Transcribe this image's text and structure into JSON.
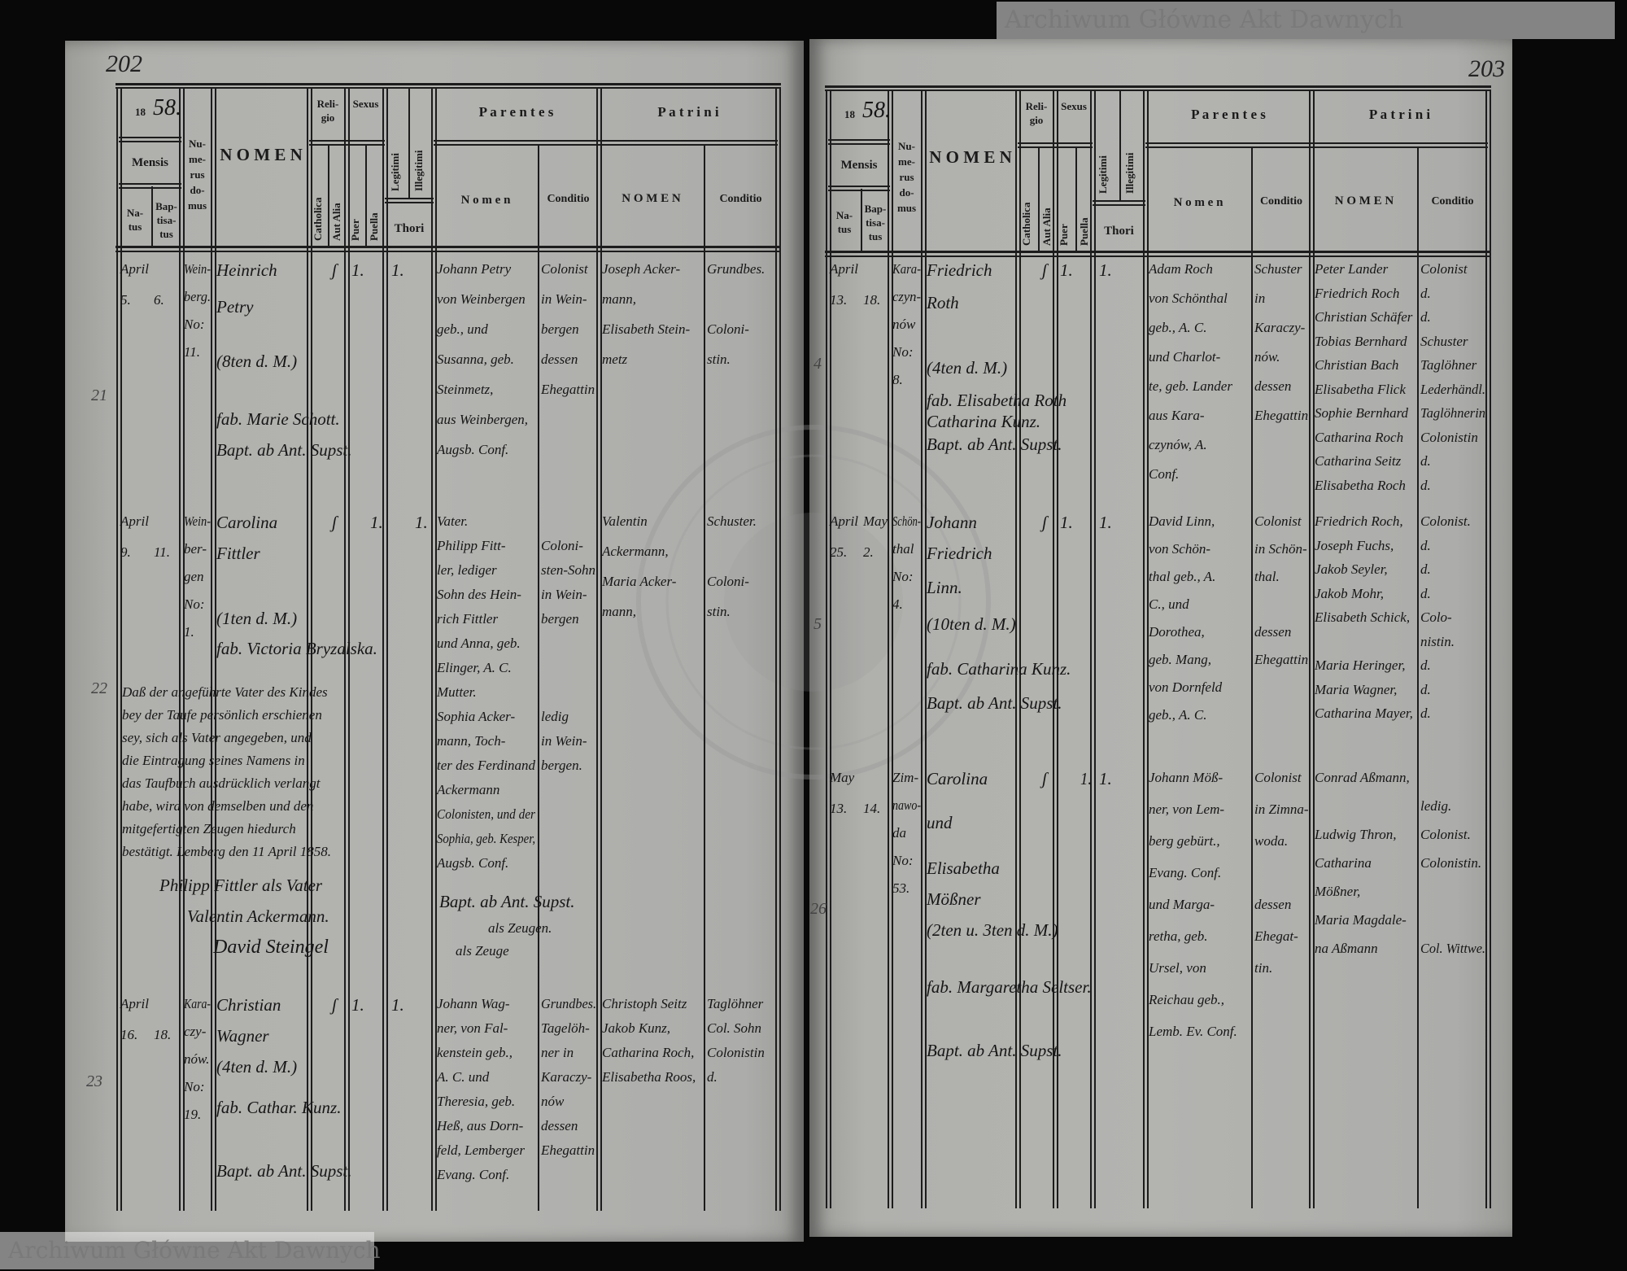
{
  "watermark_text": "Archiwum Główne Akt Dawnych",
  "stamp_text": "ARCHIWUM GŁÓWNE AKT DAWNYCH",
  "header": {
    "year_prefix": "18",
    "mensis": "Mensis",
    "natus": "Na-\ntus",
    "baptisatus": "Bap-\ntisa-\ntus",
    "numerus_domus": "Nu-\nme-\nrus\ndo-\nmus",
    "nomen": "N O M E N",
    "religio": "Reli-\ngio",
    "catholica": "Catholica",
    "aut_alia": "Aut Alia",
    "sexus": "Sexus",
    "puer": "Puer",
    "puella": "Puella",
    "legitimi": "Legitimi",
    "illegitimi": "Illegitimi",
    "thori": "Thori",
    "parentes": "P a r e n t e s",
    "parentes_nomen": "N o m e n",
    "conditio": "Conditio",
    "patrini": "P a t r i n i",
    "patrini_nomen": "N O M E N"
  },
  "left": {
    "page_number": "202",
    "year_suffix": "58.",
    "margin_numbers": [
      "21",
      "22",
      "23"
    ],
    "entries": [
      {
        "natus": [
          "April",
          "5."
        ],
        "baptisatus": [
          "",
          "6."
        ],
        "domus": [
          "Wein-",
          "berg.",
          "No:",
          "11."
        ],
        "nomen": [
          "Heinrich",
          "Petry",
          "",
          "(8ten d. M.)",
          "",
          "fab. Marie Schott.",
          "Bapt. ab Ant. Supst."
        ],
        "religio_aut_alia": "ʃ",
        "sexus_puer": "1.",
        "legitimi": "1.",
        "parentes_nomen": [
          "Johann Petry",
          "von Weinbergen",
          "geb., und",
          "Susanna, geb.",
          "Steinmetz,",
          "aus Weinbergen,",
          "Augsb. Conf."
        ],
        "parentes_conditio": [
          "Colonist",
          "in Wein-",
          "bergen",
          "dessen",
          "Ehegattin"
        ],
        "patrini_nomen": [
          "Joseph Acker-",
          "mann,",
          "Elisabeth Stein-",
          "metz"
        ],
        "patrini_conditio": [
          "Grundbes.",
          "",
          "Coloni-",
          "stin."
        ]
      },
      {
        "natus": [
          "April",
          "9."
        ],
        "baptisatus": [
          "",
          "11."
        ],
        "domus": [
          "Wein-",
          "ber-",
          "gen",
          "No:",
          "1."
        ],
        "nomen": [
          "Carolina",
          "Fittler",
          "",
          "(1ten d. M.)",
          "fab. Victoria Bryzalska."
        ],
        "religio_aut_alia": "ʃ",
        "sexus_puella": "1.",
        "illegitimi": "1.",
        "parentes_nomen": [
          "Vater.",
          "Philipp Fitt-",
          "ler, lediger",
          "Sohn des Hein-",
          "rich Fittler",
          "und Anna, geb.",
          "Elinger, A. C.",
          "Mutter.",
          "Sophia Acker-",
          "mann, Toch-",
          "ter des Ferdinand",
          "Ackermann",
          "Colonisten, und der",
          "Sophia, geb. Kesper,",
          "Augsb. Conf."
        ],
        "parentes_conditio": [
          "",
          "Coloni-",
          "sten-Sohn",
          "in Wein-",
          "bergen",
          "",
          "",
          "",
          "ledig",
          "in Wein-",
          "bergen."
        ],
        "patrini_nomen": [
          "Valentin",
          "Ackermann,",
          "Maria Acker-",
          "mann,"
        ],
        "patrini_conditio": [
          "Schuster.",
          "",
          "Coloni-",
          "stin."
        ]
      },
      {
        "natus": [
          "April",
          "16."
        ],
        "baptisatus": [
          "",
          "18."
        ],
        "domus": [
          "Kara-",
          "czy-",
          "nów.",
          "No:",
          "19."
        ],
        "nomen": [
          "Christian",
          "Wagner",
          "(4ten d. M.)",
          "fab. Cathar. Kunz.",
          "",
          "Bapt. ab Ant. Supst."
        ],
        "religio_aut_alia": "ʃ",
        "sexus_puer": "1.",
        "legitimi": "1.",
        "parentes_nomen": [
          "Johann Wag-",
          "ner, von Fal-",
          "kenstein geb.,",
          "A. C. und",
          "Theresia, geb.",
          "Heß, aus Dorn-",
          "feld, Lemberger",
          "Evang. Conf."
        ],
        "parentes_conditio": [
          "Grundbes.",
          "Tagelöh-",
          "ner in",
          "Karaczy-",
          "nów",
          "dessen",
          "Ehegattin"
        ],
        "patrini_nomen": [
          "Christoph Seitz",
          "Jakob Kunz,",
          "Catharina Roch,",
          "Elisabetha Roos,"
        ],
        "patrini_conditio": [
          "Taglöhner",
          "Col. Sohn",
          "Colonistin",
          "d."
        ]
      }
    ],
    "note": [
      "Daß der angeführte Vater des Kindes",
      "bey der Taufe persönlich erschienen",
      "sey, sich als Vater angegeben, und",
      "die Eintragung seines Namens in",
      "das Taufbuch ausdrücklich verlangt",
      "habe, wird von demselben und den",
      "mitgefertigten Zeugen hiedurch",
      "bestätigt. Lemberg den 11 April 1858."
    ],
    "signatures": {
      "father": "Philipp Fittler als Vater",
      "witness1": "Valentin Ackermann.",
      "witness2": "David Steingel",
      "baptizer": "Bapt. ab Ant. Supst.",
      "as_witnesses": "als Zeugen.",
      "as_witness": "als Zeuge"
    }
  },
  "right": {
    "page_number": "203",
    "year_suffix": "58.",
    "margin_numbers": [
      "4",
      "5",
      "26"
    ],
    "entries": [
      {
        "natus": [
          "April",
          "13."
        ],
        "baptisatus": [
          "",
          "18."
        ],
        "domus": [
          "Kara-",
          "czyn-",
          "nów",
          "No:",
          "8."
        ],
        "nomen": [
          "Friedrich",
          "Roth",
          "",
          "(4ten d. M.)",
          "fab. Elisabetha Roth",
          "Catharina Kunz.",
          "Bapt. ab Ant. Supst."
        ],
        "religio_aut_alia": "ʃ",
        "sexus_puer": "1.",
        "legitimi": "1.",
        "parentes_nomen": [
          "Adam Roch",
          "von Schönthal",
          "geb., A. C.",
          "und Charlot-",
          "te, geb. Lander",
          "aus Kara-",
          "czynów, A.",
          "Conf."
        ],
        "parentes_conditio": [
          "Schuster",
          "in",
          "Karaczy-",
          "nów.",
          "dessen",
          "Ehegattin"
        ],
        "patrini_nomen": [
          "Peter Lander",
          "Friedrich Roch",
          "Christian Schäfer",
          "Tobias Bernhard",
          "Christian Bach",
          "Elisabetha Flick",
          "Sophie Bernhard",
          "Catharina Roch",
          "Catharina Seitz",
          "Elisabetha Roch"
        ],
        "patrini_conditio": [
          "Colonist",
          "d.",
          "d.",
          "Schuster",
          "Taglöhner",
          "Lederhändl.",
          "Taglöhnerin",
          "Colonistin",
          "d.",
          "d."
        ]
      },
      {
        "natus": [
          "April",
          "25."
        ],
        "baptisatus": [
          "May",
          "2."
        ],
        "domus": [
          "Schön-",
          "thal",
          "No:",
          "4."
        ],
        "nomen": [
          "Johann",
          "Friedrich",
          "Linn.",
          "(10ten d. M.)",
          "fab. Catharina Kunz.",
          "Bapt. ab Ant. Supst."
        ],
        "religio_aut_alia": "ʃ",
        "sexus_puer": "1.",
        "legitimi": "1.",
        "parentes_nomen": [
          "David Linn,",
          "von Schön-",
          "thal geb., A.",
          "C., und",
          "Dorothea,",
          "geb. Mang,",
          "von Dornfeld",
          "geb., A. C."
        ],
        "parentes_conditio": [
          "Colonist",
          "in Schön-",
          "thal.",
          "",
          "dessen",
          "Ehegattin"
        ],
        "patrini_nomen": [
          "Friedrich Roch,",
          "Joseph Fuchs,",
          "Jakob Seyler,",
          "Jakob Mohr,",
          "Elisabeth Schick,",
          "",
          "Maria Heringer,",
          "Maria Wagner,",
          "Catharina Mayer,"
        ],
        "patrini_conditio": [
          "Colonist.",
          "d.",
          "d.",
          "d.",
          "Colo-",
          "nistin.",
          "d.",
          "d.",
          "d."
        ]
      },
      {
        "natus": [
          "May",
          "13."
        ],
        "baptisatus": [
          "",
          "14."
        ],
        "domus": [
          "Zim-",
          "nawo-",
          "da",
          "No:",
          "53."
        ],
        "nomen": [
          "Carolina",
          "und",
          "Elisabetha",
          "Mößner",
          "(2ten u. 3ten d. M.)",
          "",
          "fab. Margaretha Seltser.",
          "",
          "Bapt. ab Ant. Supst."
        ],
        "religio_aut_alia": "ʃ",
        "sexus_puella": "1.",
        "legitimi": "1.",
        "parentes_nomen": [
          "Johann Möß-",
          "ner, von Lem-",
          "berg gebürt.,",
          "Evang. Conf.",
          "und Marga-",
          "retha, geb.",
          "Ursel, von",
          "Reichau geb.,",
          "Lemb. Ev. Conf."
        ],
        "parentes_conditio": [
          "Colonist",
          "in Zimna-",
          "woda.",
          "",
          "dessen",
          "Ehegat-",
          "tin."
        ],
        "patrini_nomen": [
          "Conrad Aßmann,",
          "",
          "Ludwig Thron,",
          "Catharina",
          "Mößner,",
          "Maria Magdale-",
          "na Aßmann"
        ],
        "patrini_conditio": [
          "",
          "ledig.",
          "Colonist.",
          "Colonistin.",
          "",
          "",
          "Col. Wittwe."
        ]
      }
    ]
  }
}
